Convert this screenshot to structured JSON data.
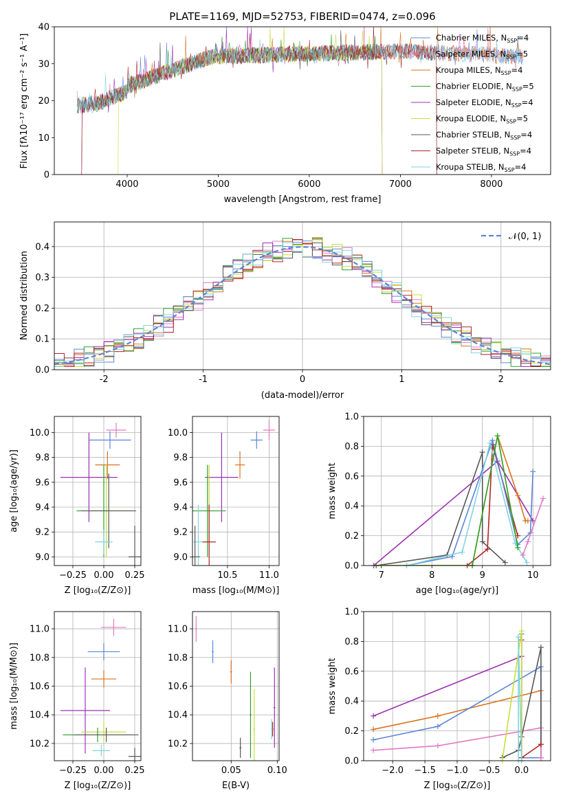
{
  "chart_data": [
    {
      "type": "line",
      "title": "PLATE=1169, MJD=52753, FIBERID=0474, z=0.096",
      "xlabel": "wavelength [Angstrom, rest frame]",
      "ylabel": "Flux [fλ10⁻¹⁷ erg cm⁻² s⁻¹ A⁻¹]",
      "xlim": [
        3200,
        8650
      ],
      "ylim": [
        0,
        40
      ],
      "xticks": [
        4000,
        5000,
        6000,
        7000,
        8000
      ],
      "yticks": [
        0,
        10,
        20,
        30,
        40
      ],
      "grid": false,
      "legend_position": "top-right",
      "observed_spectrum": {
        "range": [
          3450,
          8350
        ],
        "level_blue": 18,
        "level_red": 30
      },
      "series": [
        {
          "name": "Chabrier MILES, N_SSP=4",
          "color": "#5b84d6",
          "x_range": [
            3450,
            8350
          ]
        },
        {
          "name": "Salpeter MILES, N_SSP=5",
          "color": "#e377c2",
          "x_range": [
            3450,
            8350
          ]
        },
        {
          "name": "Kroupa MILES, N_SSP=4",
          "color": "#d9711e",
          "x_range": [
            3450,
            8350
          ]
        },
        {
          "name": "Chabrier ELODIE, N_SSP=5",
          "color": "#2ca02c",
          "x_range": [
            3500,
            6800
          ]
        },
        {
          "name": "Salpeter ELODIE, N_SSP=4",
          "color": "#9b30b0",
          "x_range": [
            3500,
            6800
          ]
        },
        {
          "name": "Kroupa ELODIE, N_SSP=5",
          "color": "#c8dd3a",
          "x_range": [
            3900,
            6800
          ]
        },
        {
          "name": "Chabrier STELIB, N_SSP=4",
          "color": "#555555",
          "x_range": [
            3450,
            7400
          ]
        },
        {
          "name": "Salpeter STELIB, N_SSP=4",
          "color": "#b22222",
          "x_range": [
            3500,
            7400
          ]
        },
        {
          "name": "Kroupa STELIB, N_SSP=4",
          "color": "#7fd3df",
          "x_range": [
            3450,
            8350
          ]
        }
      ]
    },
    {
      "type": "histogram",
      "xlabel": "(data-model)/error",
      "ylabel": "Normed distribution",
      "xlim": [
        -2.5,
        2.5
      ],
      "ylim": [
        0,
        0.48
      ],
      "xticks": [
        -2,
        -1,
        0,
        1,
        2
      ],
      "yticks": [
        0.0,
        0.1,
        0.2,
        0.3,
        0.4
      ],
      "grid": true,
      "legend_position": "top-right",
      "legend": "𝒩(0, 1)",
      "reference_curve": {
        "mean": 0,
        "sigma": 1,
        "style": "dashed",
        "color": "#5b84d6"
      },
      "bin_width": 0.1,
      "series_colors": [
        "#5b84d6",
        "#e377c2",
        "#d9711e",
        "#2ca02c",
        "#9b30b0",
        "#c8dd3a",
        "#555555",
        "#b22222",
        "#7fd3df"
      ]
    },
    {
      "type": "errorbar",
      "xlabel": "Z [log₁₀(Z/Z⊙)]",
      "ylabel": "age  [log₁₀(age/yr)]",
      "xlim": [
        -0.4,
        0.3
      ],
      "ylim": [
        8.93,
        10.13
      ],
      "xticks": [
        -0.25,
        0.0,
        0.25
      ],
      "xticklabels": [
        "−0.25",
        "0.00",
        "0.25"
      ],
      "yticks": [
        9.0,
        9.2,
        9.4,
        9.6,
        9.8,
        10.0
      ],
      "yticklabels": [
        "9.0",
        "9.2",
        "9.4",
        "9.6",
        "9.8",
        "10.0"
      ],
      "grid": true,
      "points": [
        {
          "color": "#5b84d6",
          "x": 0.05,
          "xerr": 0.17,
          "y": 9.94,
          "yerr": 0.07
        },
        {
          "color": "#e377c2",
          "x": 0.1,
          "xerr": 0.08,
          "y": 10.02,
          "yerr": 0.06
        },
        {
          "color": "#d9711e",
          "x": 0.03,
          "xerr": 0.1,
          "y": 9.74,
          "yerr": 0.11
        },
        {
          "color": "#9b30b0",
          "x": -0.12,
          "xerr": 0.23,
          "y": 9.64,
          "yerr": 0.36
        },
        {
          "color": "#c8dd3a",
          "x": 0.02,
          "xerr": 0.21,
          "y": 9.37,
          "yerr": 0.37
        },
        {
          "color": "#2ca02c",
          "x": 0.0,
          "xerr": 0.22,
          "y": 9.37,
          "yerr": 0.37
        },
        {
          "color": "#555555",
          "x": 0.04,
          "xerr": 0.22,
          "y": 9.37,
          "yerr": 0.3
        },
        {
          "color": "#7fd3df",
          "x": 0.0,
          "xerr": 0.07,
          "y": 9.12,
          "yerr": 0.1
        },
        {
          "color": "#555555",
          "x": 0.25,
          "xerr": 0.05,
          "y": 9.0,
          "yerr": 0.25
        }
      ]
    },
    {
      "type": "errorbar",
      "xlabel": "mass [log₁₀(M/M⊙)]",
      "ylabel": "",
      "xlim": [
        10.08,
        11.12
      ],
      "ylim": [
        8.93,
        10.13
      ],
      "xticks": [
        10.5,
        11.0
      ],
      "xticklabels": [
        "10.5",
        "11.0"
      ],
      "yticks": [
        9.0,
        9.2,
        9.4,
        9.6,
        9.8,
        10.0
      ],
      "yticklabels": [
        "9.0",
        "9.2",
        "9.4",
        "9.6",
        "9.8",
        "10.0"
      ],
      "grid": true,
      "points": [
        {
          "color": "#e377c2",
          "x": 11.0,
          "xerr": 0.07,
          "y": 10.02,
          "yerr": 0.08
        },
        {
          "color": "#5b84d6",
          "x": 10.85,
          "xerr": 0.07,
          "y": 9.94,
          "yerr": 0.07
        },
        {
          "color": "#d9711e",
          "x": 10.65,
          "xerr": 0.06,
          "y": 9.74,
          "yerr": 0.11
        },
        {
          "color": "#9b30b0",
          "x": 10.43,
          "xerr": 0.2,
          "y": 9.64,
          "yerr": 0.36
        },
        {
          "color": "#c8dd3a",
          "x": 10.28,
          "xerr": 0.1,
          "y": 9.37,
          "yerr": 0.37
        },
        {
          "color": "#2ca02c",
          "x": 10.26,
          "xerr": 0.22,
          "y": 9.37,
          "yerr": 0.37
        },
        {
          "color": "#7fd3df",
          "x": 10.15,
          "xerr": 0.06,
          "y": 9.12,
          "yerr": 0.3
        },
        {
          "color": "#555555",
          "x": 10.11,
          "xerr": 0.06,
          "y": 9.0,
          "yerr": 0.25
        },
        {
          "color": "#b22222",
          "x": 10.28,
          "xerr": 0.08,
          "y": 9.12,
          "yerr": 0.3
        }
      ]
    },
    {
      "type": "line",
      "xlabel": "age  [log₁₀(age/yr)]",
      "ylabel": "mass weight",
      "xlim": [
        6.65,
        10.35
      ],
      "ylim": [
        0,
        1.0
      ],
      "xticks": [
        7,
        8,
        9,
        10
      ],
      "yticks": [
        0.0,
        0.2,
        0.4,
        0.6,
        0.8,
        1.0
      ],
      "grid": true,
      "series": [
        {
          "color": "#9b30b0",
          "x": [
            6.85,
            9.3,
            10.0
          ],
          "y": [
            0.0,
            0.7,
            0.3
          ]
        },
        {
          "color": "#555555",
          "x": [
            6.9,
            8.3,
            9.0,
            9.0,
            9.45
          ],
          "y": [
            0.0,
            0.07,
            0.76,
            0.16,
            0.02
          ]
        },
        {
          "color": "#b22222",
          "x": [
            6.9,
            8.7,
            9.1,
            9.2,
            9.7
          ],
          "y": [
            0.0,
            0.0,
            0.11,
            0.81,
            0.2
          ]
        },
        {
          "color": "#5b84d6",
          "x": [
            7.5,
            8.4,
            9.2,
            9.7,
            9.95,
            10.0
          ],
          "y": [
            0.0,
            0.06,
            0.84,
            0.14,
            0.22,
            0.63
          ]
        },
        {
          "color": "#7fd3df",
          "x": [
            7.5,
            8.6,
            9.15,
            9.65,
            9.88
          ],
          "y": [
            0.0,
            0.09,
            0.82,
            0.15,
            0.02
          ]
        },
        {
          "color": "#d9711e",
          "x": [
            6.9,
            8.8,
            9.3,
            9.7,
            9.85,
            9.9
          ],
          "y": [
            0.0,
            0.0,
            0.87,
            0.47,
            0.3,
            0.3
          ]
        },
        {
          "color": "#c8dd3a",
          "x": [
            6.9,
            8.8,
            9.3,
            9.7
          ],
          "y": [
            0.0,
            0.0,
            0.87,
            0.12
          ]
        },
        {
          "color": "#2ca02c",
          "x": [
            6.9,
            8.8,
            9.3,
            9.7
          ],
          "y": [
            0.0,
            0.0,
            0.87,
            0.12
          ]
        },
        {
          "color": "#e377c2",
          "x": [
            9.8,
            9.9,
            10.2
          ],
          "y": [
            0.07,
            0.16,
            0.45
          ]
        }
      ]
    },
    {
      "type": "errorbar",
      "xlabel": "Z [log₁₀(Z/Z⊙)]",
      "ylabel": "mass [log₁₀(M/M⊙)]",
      "xlim": [
        -0.4,
        0.3
      ],
      "ylim": [
        10.08,
        11.12
      ],
      "xticks": [
        -0.25,
        0.0,
        0.25
      ],
      "xticklabels": [
        "−0.25",
        "0.00",
        "0.25"
      ],
      "yticks": [
        10.2,
        10.4,
        10.6,
        10.8,
        11.0
      ],
      "yticklabels": [
        "10.2",
        "10.4",
        "10.6",
        "10.8",
        "11.0"
      ],
      "grid": true,
      "points": [
        {
          "color": "#e377c2",
          "x": 0.08,
          "xerr": 0.1,
          "y": 11.01,
          "yerr": 0.06
        },
        {
          "color": "#5b84d6",
          "x": 0.0,
          "xerr": 0.13,
          "y": 10.84,
          "yerr": 0.06
        },
        {
          "color": "#d9711e",
          "x": 0.0,
          "xerr": 0.1,
          "y": 10.65,
          "yerr": 0.06
        },
        {
          "color": "#9b30b0",
          "x": -0.15,
          "xerr": 0.2,
          "y": 10.43,
          "yerr": 0.3
        },
        {
          "color": "#c8dd3a",
          "x": 0.0,
          "xerr": 0.18,
          "y": 10.28,
          "yerr": 0.07
        },
        {
          "color": "#2ca02c",
          "x": -0.05,
          "xerr": 0.28,
          "y": 10.26,
          "yerr": 0.05
        },
        {
          "color": "#555555",
          "x": 0.02,
          "xerr": 0.26,
          "y": 10.26,
          "yerr": 0.05
        },
        {
          "color": "#7fd3df",
          "x": -0.02,
          "xerr": 0.07,
          "y": 10.15,
          "yerr": 0.04
        },
        {
          "color": "#555555",
          "x": 0.25,
          "xerr": 0.05,
          "y": 10.11,
          "yerr": 0.06
        }
      ]
    },
    {
      "type": "errorbar",
      "xlabel": "E(B-V)",
      "ylabel": "",
      "xlim": [
        0.008,
        0.102
      ],
      "ylim": [
        10.08,
        11.12
      ],
      "xticks": [
        0.05,
        0.1
      ],
      "xticklabels": [
        "0.05",
        "0.10"
      ],
      "yticks": [
        10.2,
        10.4,
        10.6,
        10.8,
        11.0
      ],
      "yticklabels": [
        "10.2",
        "10.4",
        "10.6",
        "10.8",
        "11.0"
      ],
      "grid": true,
      "points": [
        {
          "color": "#e377c2",
          "x": 0.012,
          "xerr": 0.001,
          "y": 11.0,
          "yerr": 0.09
        },
        {
          "color": "#5b84d6",
          "x": 0.03,
          "xerr": 0.001,
          "y": 10.84,
          "yerr": 0.08
        },
        {
          "color": "#d9711e",
          "x": 0.05,
          "xerr": 0.001,
          "y": 10.7,
          "yerr": 0.08
        },
        {
          "color": "#2ca02c",
          "x": 0.071,
          "xerr": 0.001,
          "y": 10.4,
          "yerr": 0.3
        },
        {
          "color": "#9b30b0",
          "x": 0.097,
          "xerr": 0.001,
          "y": 10.45,
          "yerr": 0.28
        },
        {
          "color": "#c8dd3a",
          "x": 0.075,
          "xerr": 0.001,
          "y": 10.3,
          "yerr": 0.28
        },
        {
          "color": "#555555",
          "x": 0.06,
          "xerr": 0.001,
          "y": 10.17,
          "yerr": 0.07
        },
        {
          "color": "#b22222",
          "x": 0.095,
          "xerr": 0.001,
          "y": 10.3,
          "yerr": 0.05
        },
        {
          "color": "#7fd3df",
          "x": 0.094,
          "xerr": 0.001,
          "y": 10.3,
          "yerr": 0.07
        }
      ]
    },
    {
      "type": "line",
      "xlabel": "Z [log₁₀(Z/Z⊙)]",
      "ylabel": "mass weight",
      "xlim": [
        -2.45,
        0.45
      ],
      "ylim": [
        0,
        1.0
      ],
      "xticks": [
        -2.0,
        -1.5,
        -1.0,
        -0.5,
        0.0
      ],
      "xticklabels": [
        "−2.0",
        "−1.5",
        "−1.0",
        "−0.5",
        "0.0"
      ],
      "yticks": [
        0.0,
        0.2,
        0.4,
        0.6,
        0.8,
        1.0
      ],
      "grid": true,
      "series": [
        {
          "color": "#9b30b0",
          "x": [
            -2.3,
            0.0
          ],
          "y": [
            0.3,
            0.7
          ]
        },
        {
          "color": "#d9711e",
          "x": [
            -2.3,
            -1.3,
            0.3,
            0.3
          ],
          "y": [
            0.21,
            0.3,
            0.47,
            0.02
          ]
        },
        {
          "color": "#5b84d6",
          "x": [
            -2.3,
            -1.3,
            0.3,
            0.3,
            0.0,
            0.0
          ],
          "y": [
            0.14,
            0.23,
            0.63,
            0.02,
            0.02,
            0.85
          ]
        },
        {
          "color": "#e377c2",
          "x": [
            -2.3,
            -1.3,
            0.3,
            0.3
          ],
          "y": [
            0.07,
            0.1,
            0.22,
            0.02
          ]
        },
        {
          "color": "#555555",
          "x": [
            -0.3,
            -0.05,
            0.0,
            0.3,
            0.3
          ],
          "y": [
            0.02,
            0.07,
            0.16,
            0.76,
            0.11
          ]
        },
        {
          "color": "#b22222",
          "x": [
            0.0,
            0.0,
            0.3
          ],
          "y": [
            0.81,
            0.02,
            0.11
          ]
        },
        {
          "color": "#c8dd3a",
          "x": [
            -0.3,
            0.0,
            0.0
          ],
          "y": [
            0.0,
            0.87,
            0.0
          ]
        },
        {
          "color": "#7fd3df",
          "x": [
            -0.05,
            -0.05,
            0.0
          ],
          "y": [
            0.0,
            0.83,
            0.0
          ]
        }
      ]
    }
  ]
}
